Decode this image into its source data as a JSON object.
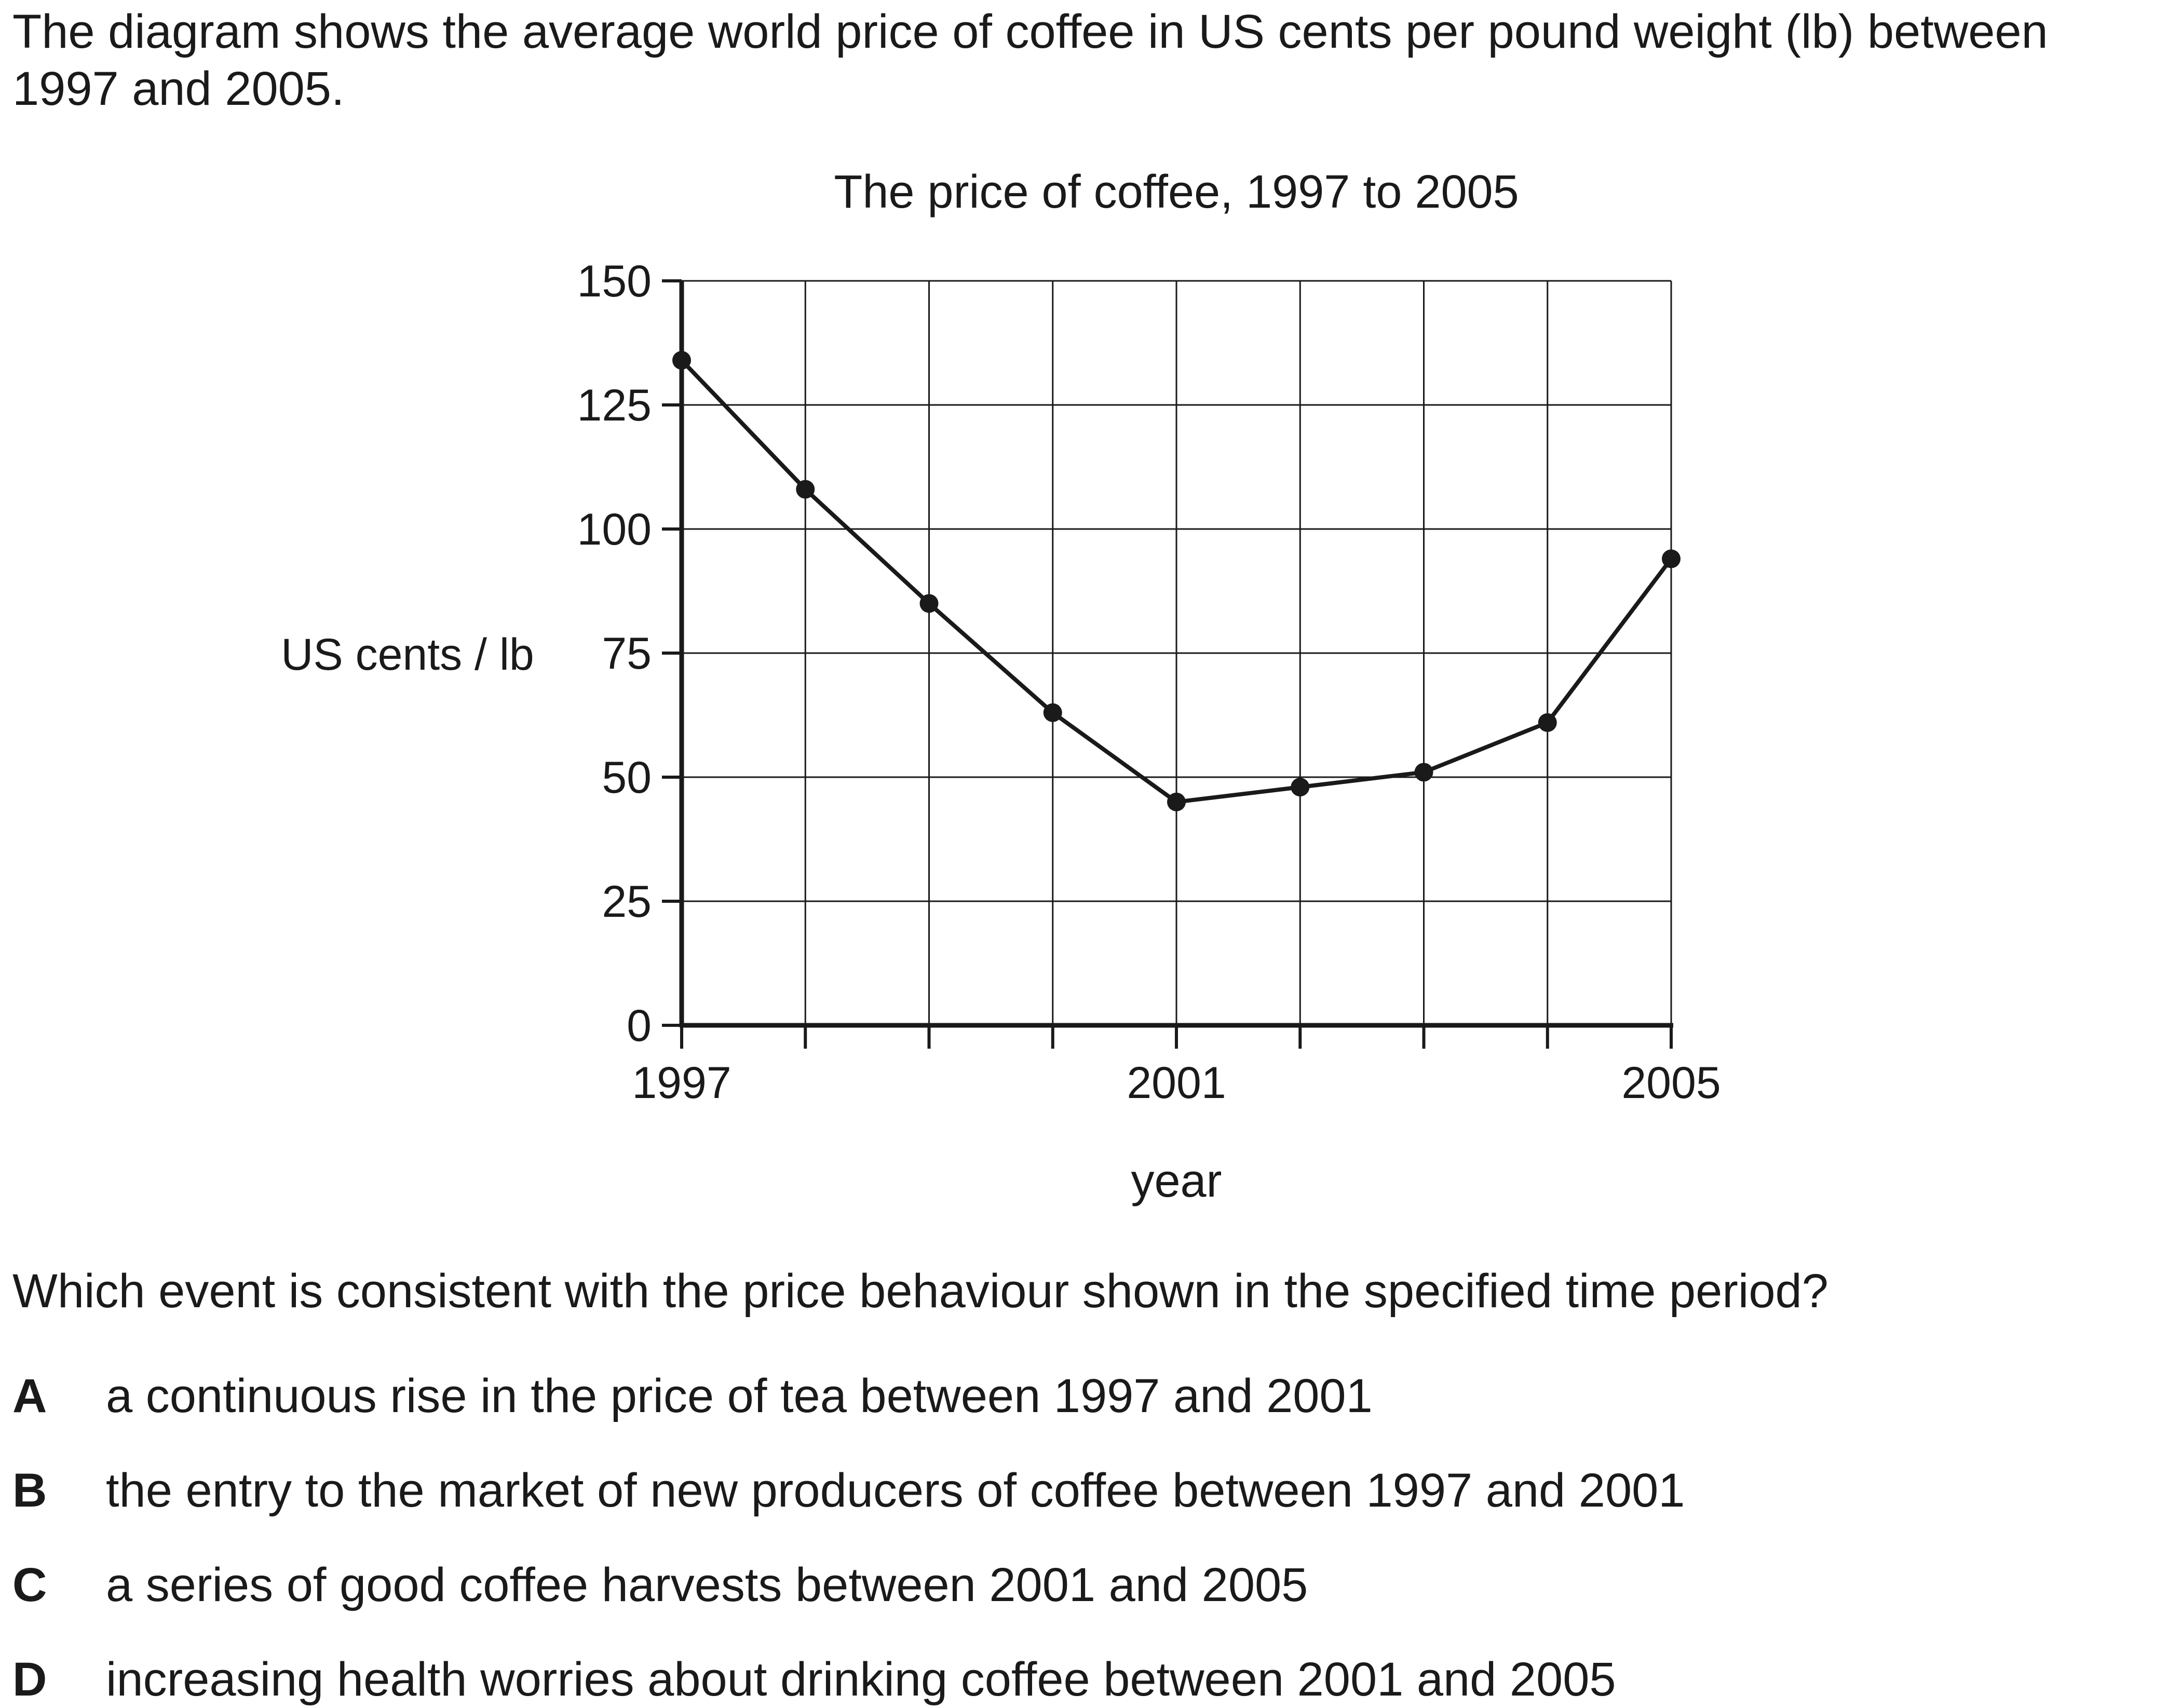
{
  "intro": "The diagram shows the average world price of coffee in US cents per pound weight (lb) between 1997 and 2005.",
  "question": "Which event is consistent with the price behaviour shown in the specified time period?",
  "options": [
    {
      "letter": "A",
      "text": "a continuous rise in the price of tea between 1997 and 2001"
    },
    {
      "letter": "B",
      "text": "the entry to the market of new producers of coffee between 1997 and 2001"
    },
    {
      "letter": "C",
      "text": "a series of good coffee harvests between 2001 and 2005"
    },
    {
      "letter": "D",
      "text": "increasing health worries about drinking coffee between 2001 and 2005"
    }
  ],
  "chart_data": {
    "type": "line",
    "title": "The price of coffee, 1997 to 2005",
    "xlabel": "year",
    "ylabel": "US cents / lb",
    "x": [
      1997,
      1998,
      1999,
      2000,
      2001,
      2002,
      2003,
      2004,
      2005
    ],
    "values": [
      134,
      108,
      85,
      63,
      45,
      48,
      51,
      61,
      94
    ],
    "xlim": [
      1997,
      2005
    ],
    "ylim": [
      0,
      150
    ],
    "y_ticks": [
      0,
      25,
      50,
      75,
      100,
      125,
      150
    ],
    "x_tick_labels": [
      "1997",
      "2001",
      "2005"
    ],
    "grid": true,
    "markers": "filled-circle",
    "colors": {
      "line": "#1a1a1a",
      "grid": "#1a1a1a"
    }
  }
}
